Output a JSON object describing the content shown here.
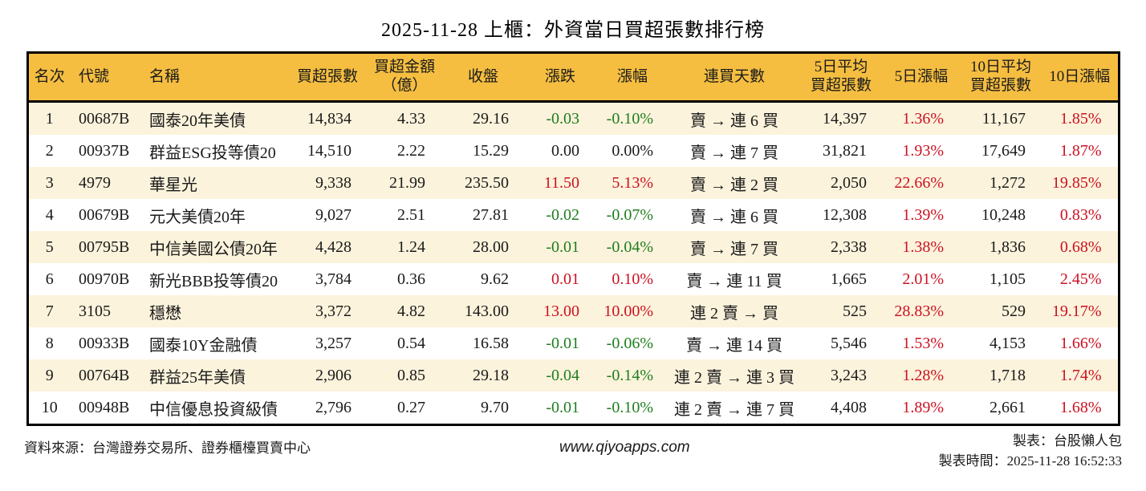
{
  "title": "2025-11-28 上櫃：外資當日買超張數排行榜",
  "table": {
    "columns": [
      {
        "key": "rank",
        "label": "名次"
      },
      {
        "key": "code",
        "label": "代號"
      },
      {
        "key": "name",
        "label": "名稱"
      },
      {
        "key": "net_buy_volume",
        "label": "買超張數"
      },
      {
        "key": "net_buy_amount",
        "label": "買超金額\n（億）"
      },
      {
        "key": "close",
        "label": "收盤"
      },
      {
        "key": "change",
        "label": "漲跌"
      },
      {
        "key": "change_pct",
        "label": "漲幅"
      },
      {
        "key": "streak",
        "label": "連買天數"
      },
      {
        "key": "avg5_volume",
        "label": "5日平均\n買超張數"
      },
      {
        "key": "pct5",
        "label": "5日漲幅"
      },
      {
        "key": "avg10_volume",
        "label": "10日平均\n買超張數"
      },
      {
        "key": "pct10",
        "label": "10日漲幅"
      }
    ],
    "signed_columns": [
      "change",
      "change_pct",
      "pct5",
      "pct10"
    ],
    "rows": [
      {
        "rank": "1",
        "code": "00687B",
        "name": "國泰20年美債",
        "net_buy_volume": "14,834",
        "net_buy_amount": "4.33",
        "close": "29.16",
        "change": "-0.03",
        "change_pct": "-0.10%",
        "streak": "賣 → 連 6 買",
        "avg5_volume": "14,397",
        "pct5": "1.36%",
        "avg10_volume": "11,167",
        "pct10": "1.85%"
      },
      {
        "rank": "2",
        "code": "00937B",
        "name": "群益ESG投等債20",
        "net_buy_volume": "14,510",
        "net_buy_amount": "2.22",
        "close": "15.29",
        "change": "0.00",
        "change_pct": "0.00%",
        "streak": "賣 → 連 7 買",
        "avg5_volume": "31,821",
        "pct5": "1.93%",
        "avg10_volume": "17,649",
        "pct10": "1.87%"
      },
      {
        "rank": "3",
        "code": "4979",
        "name": "華星光",
        "net_buy_volume": "9,338",
        "net_buy_amount": "21.99",
        "close": "235.50",
        "change": "11.50",
        "change_pct": "5.13%",
        "streak": "賣 → 連 2 買",
        "avg5_volume": "2,050",
        "pct5": "22.66%",
        "avg10_volume": "1,272",
        "pct10": "19.85%"
      },
      {
        "rank": "4",
        "code": "00679B",
        "name": "元大美債20年",
        "net_buy_volume": "9,027",
        "net_buy_amount": "2.51",
        "close": "27.81",
        "change": "-0.02",
        "change_pct": "-0.07%",
        "streak": "賣 → 連 6 買",
        "avg5_volume": "12,308",
        "pct5": "1.39%",
        "avg10_volume": "10,248",
        "pct10": "0.83%"
      },
      {
        "rank": "5",
        "code": "00795B",
        "name": "中信美國公債20年",
        "net_buy_volume": "4,428",
        "net_buy_amount": "1.24",
        "close": "28.00",
        "change": "-0.01",
        "change_pct": "-0.04%",
        "streak": "賣 → 連 7 買",
        "avg5_volume": "2,338",
        "pct5": "1.38%",
        "avg10_volume": "1,836",
        "pct10": "0.68%"
      },
      {
        "rank": "6",
        "code": "00970B",
        "name": "新光BBB投等債20",
        "net_buy_volume": "3,784",
        "net_buy_amount": "0.36",
        "close": "9.62",
        "change": "0.01",
        "change_pct": "0.10%",
        "streak": "賣 → 連 11 買",
        "avg5_volume": "1,665",
        "pct5": "2.01%",
        "avg10_volume": "1,105",
        "pct10": "2.45%"
      },
      {
        "rank": "7",
        "code": "3105",
        "name": "穩懋",
        "net_buy_volume": "3,372",
        "net_buy_amount": "4.82",
        "close": "143.00",
        "change": "13.00",
        "change_pct": "10.00%",
        "streak": "連 2 賣 → 買",
        "avg5_volume": "525",
        "pct5": "28.83%",
        "avg10_volume": "529",
        "pct10": "19.17%"
      },
      {
        "rank": "8",
        "code": "00933B",
        "name": "國泰10Y金融債",
        "net_buy_volume": "3,257",
        "net_buy_amount": "0.54",
        "close": "16.58",
        "change": "-0.01",
        "change_pct": "-0.06%",
        "streak": "賣 → 連 14 買",
        "avg5_volume": "5,546",
        "pct5": "1.53%",
        "avg10_volume": "4,153",
        "pct10": "1.66%"
      },
      {
        "rank": "9",
        "code": "00764B",
        "name": "群益25年美債",
        "net_buy_volume": "2,906",
        "net_buy_amount": "0.85",
        "close": "29.18",
        "change": "-0.04",
        "change_pct": "-0.14%",
        "streak": "連 2 賣 → 連 3 買",
        "avg5_volume": "3,243",
        "pct5": "1.28%",
        "avg10_volume": "1,718",
        "pct10": "1.74%"
      },
      {
        "rank": "10",
        "code": "00948B",
        "name": "中信優息投資級債",
        "net_buy_volume": "2,796",
        "net_buy_amount": "0.27",
        "close": "9.70",
        "change": "-0.01",
        "change_pct": "-0.10%",
        "streak": "連 2 賣 → 連 7 買",
        "avg5_volume": "4,408",
        "pct5": "1.89%",
        "avg10_volume": "2,661",
        "pct10": "1.68%"
      }
    ]
  },
  "footer": {
    "source": "資料來源：台灣證券交易所、證券櫃檯買賣中心",
    "website": "www.qiyoapps.com",
    "maker": "製表：台股懶人包",
    "made_time": "製表時間：2025-11-28 16:52:33"
  },
  "colors": {
    "header_bg": "#F5BE41",
    "row_alt_bg": "#FCF3DC",
    "up_red": "#CC1122",
    "down_green": "#1E7D1E"
  }
}
